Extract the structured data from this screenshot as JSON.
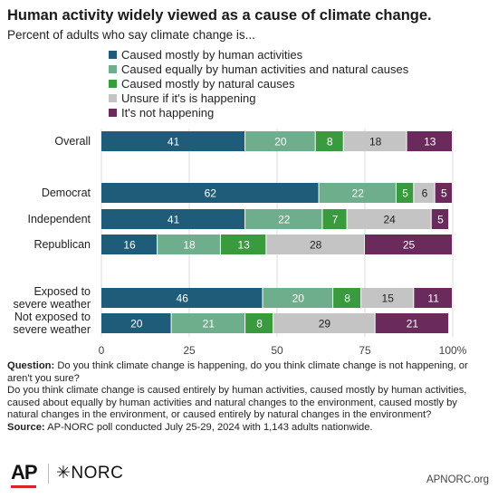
{
  "title": "Human activity widely viewed as a cause of climate change.",
  "subtitle": "Percent of adults who say climate change is...",
  "chart_data": {
    "type": "bar",
    "orientation": "horizontal",
    "stacked": true,
    "categories": [
      "Overall",
      "Democrat",
      "Independent",
      "Republican",
      "Exposed to severe weather",
      "Not exposed to severe weather"
    ],
    "category_lines": [
      [
        "Overall"
      ],
      [
        "Democrat"
      ],
      [
        "Independent"
      ],
      [
        "Republican"
      ],
      [
        "Exposed to",
        "severe weather"
      ],
      [
        "Not exposed to",
        "severe weather"
      ]
    ],
    "series": [
      {
        "name": "Caused mostly by human activities",
        "color": "#1f5c7a",
        "values": [
          41,
          62,
          41,
          16,
          46,
          20
        ]
      },
      {
        "name": "Caused equally by human activities and natural causes",
        "color": "#6fae8c",
        "values": [
          20,
          22,
          22,
          18,
          20,
          21
        ]
      },
      {
        "name": "Caused mostly by natural causes",
        "color": "#3a9a3e",
        "values": [
          8,
          5,
          7,
          13,
          8,
          8
        ]
      },
      {
        "name": "Unsure if it's is happening",
        "color": "#c4c4c4",
        "values": [
          18,
          6,
          24,
          28,
          15,
          29
        ]
      },
      {
        "name": "It's not happening",
        "color": "#6a2a5c",
        "values": [
          13,
          5,
          5,
          25,
          11,
          21
        ]
      }
    ],
    "xlim": [
      0,
      100
    ],
    "x_ticks": [
      "0",
      "25",
      "50",
      "75",
      "100%"
    ],
    "x_tick_values": [
      0,
      25,
      50,
      75,
      100
    ],
    "grid": true,
    "legend_position": "top"
  },
  "notes": {
    "question_label": "Question:",
    "question_1": "Do you think climate change is happening, do you think climate change is not happening, or aren't you sure?",
    "question_2": "Do you think climate change is caused entirely by human activities, caused mostly by human activities, caused about equally by human activities and natural changes to the environment, caused mostly by natural changes in the environment, or caused entirely by natural changes in the environment?",
    "source_label": "Source:",
    "source": "AP-NORC poll conducted July 25-29, 2024 with 1,143 adults nationwide."
  },
  "footer": {
    "ap_logo": "AP",
    "norc_logo": "✳NORC",
    "website": "APNORC.org"
  }
}
